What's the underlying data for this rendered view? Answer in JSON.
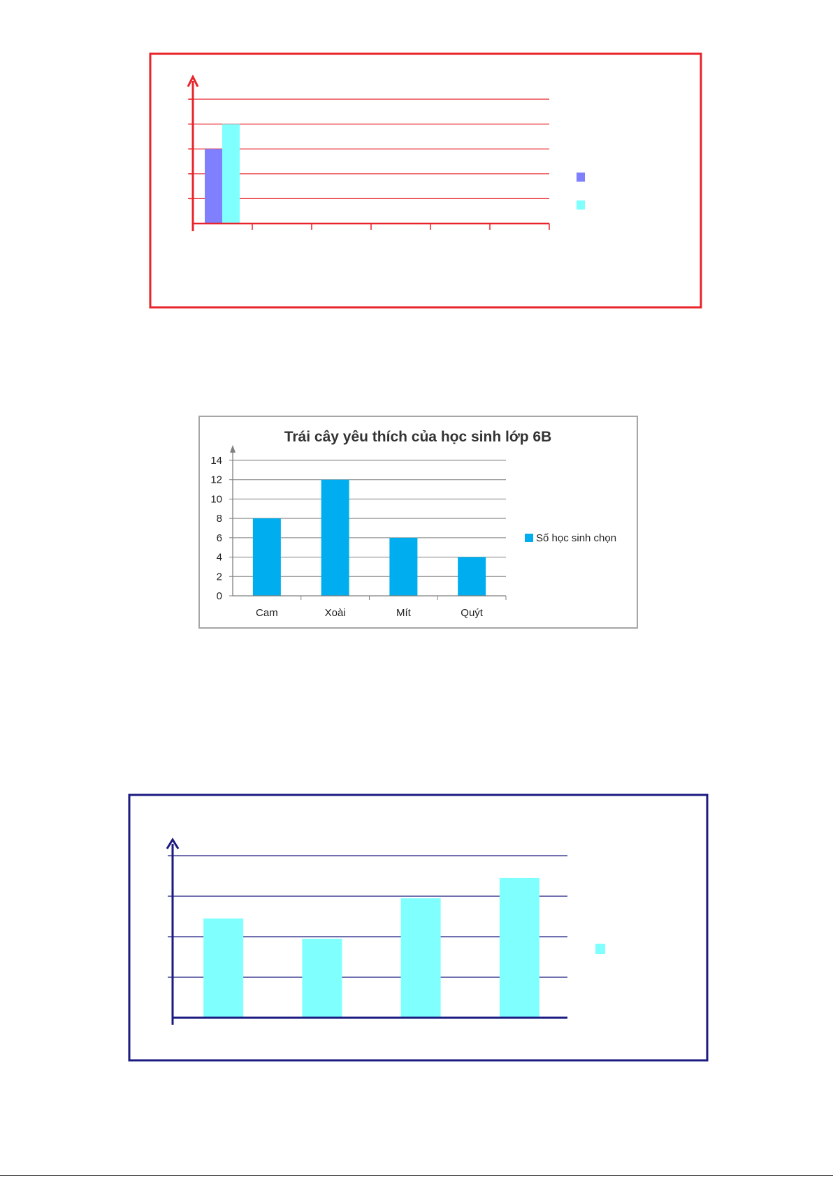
{
  "chart_data": [
    {
      "type": "bar",
      "title": "",
      "frame_color": "#e8232a",
      "axis_color": "#e8232a",
      "grid_color": "#e8232a",
      "categories": [
        "",
        "",
        "",
        "",
        "",
        ""
      ],
      "series": [
        {
          "color": "#8080ff",
          "values": [
            3,
            null,
            null,
            null,
            null,
            null
          ]
        },
        {
          "color": "#80ffff",
          "values": [
            4,
            null,
            null,
            null,
            null,
            null
          ]
        }
      ],
      "ylim": [
        0,
        5
      ],
      "y_gridlines": [
        1,
        2,
        3,
        4,
        5
      ],
      "tick_labels_visible": false,
      "legend": {
        "position": "right",
        "labels": [
          "",
          ""
        ]
      }
    },
    {
      "type": "bar",
      "title": "Trái cây yêu thích của học sinh lớp 6B",
      "frame_color": "#a6a6a6",
      "axis_color": "#808080",
      "grid_color": "#808080",
      "categories": [
        "Cam",
        "Xoài",
        "Mít",
        "Quýt"
      ],
      "series": [
        {
          "name": "Số học sinh chọn",
          "color": "#00aeef",
          "values": [
            8,
            12,
            6,
            4
          ]
        }
      ],
      "ylim": [
        0,
        14
      ],
      "y_ticks": [
        0,
        2,
        4,
        6,
        8,
        10,
        12,
        14
      ],
      "tick_labels_visible": true,
      "legend": {
        "position": "right",
        "labels": [
          "Số học sinh chọn"
        ]
      }
    },
    {
      "type": "bar",
      "title": "",
      "frame_color": "#1a1a80",
      "axis_color": "#1a1a80",
      "grid_color": "#1a1a80",
      "categories": [
        "",
        "",
        "",
        ""
      ],
      "series": [
        {
          "color": "#80ffff",
          "values": [
            2.45,
            1.95,
            2.95,
            3.45
          ]
        }
      ],
      "ylim": [
        0,
        4
      ],
      "y_gridlines": [
        1,
        2,
        3,
        4
      ],
      "tick_labels_visible": false,
      "legend": {
        "position": "right",
        "labels": [
          ""
        ]
      }
    }
  ]
}
